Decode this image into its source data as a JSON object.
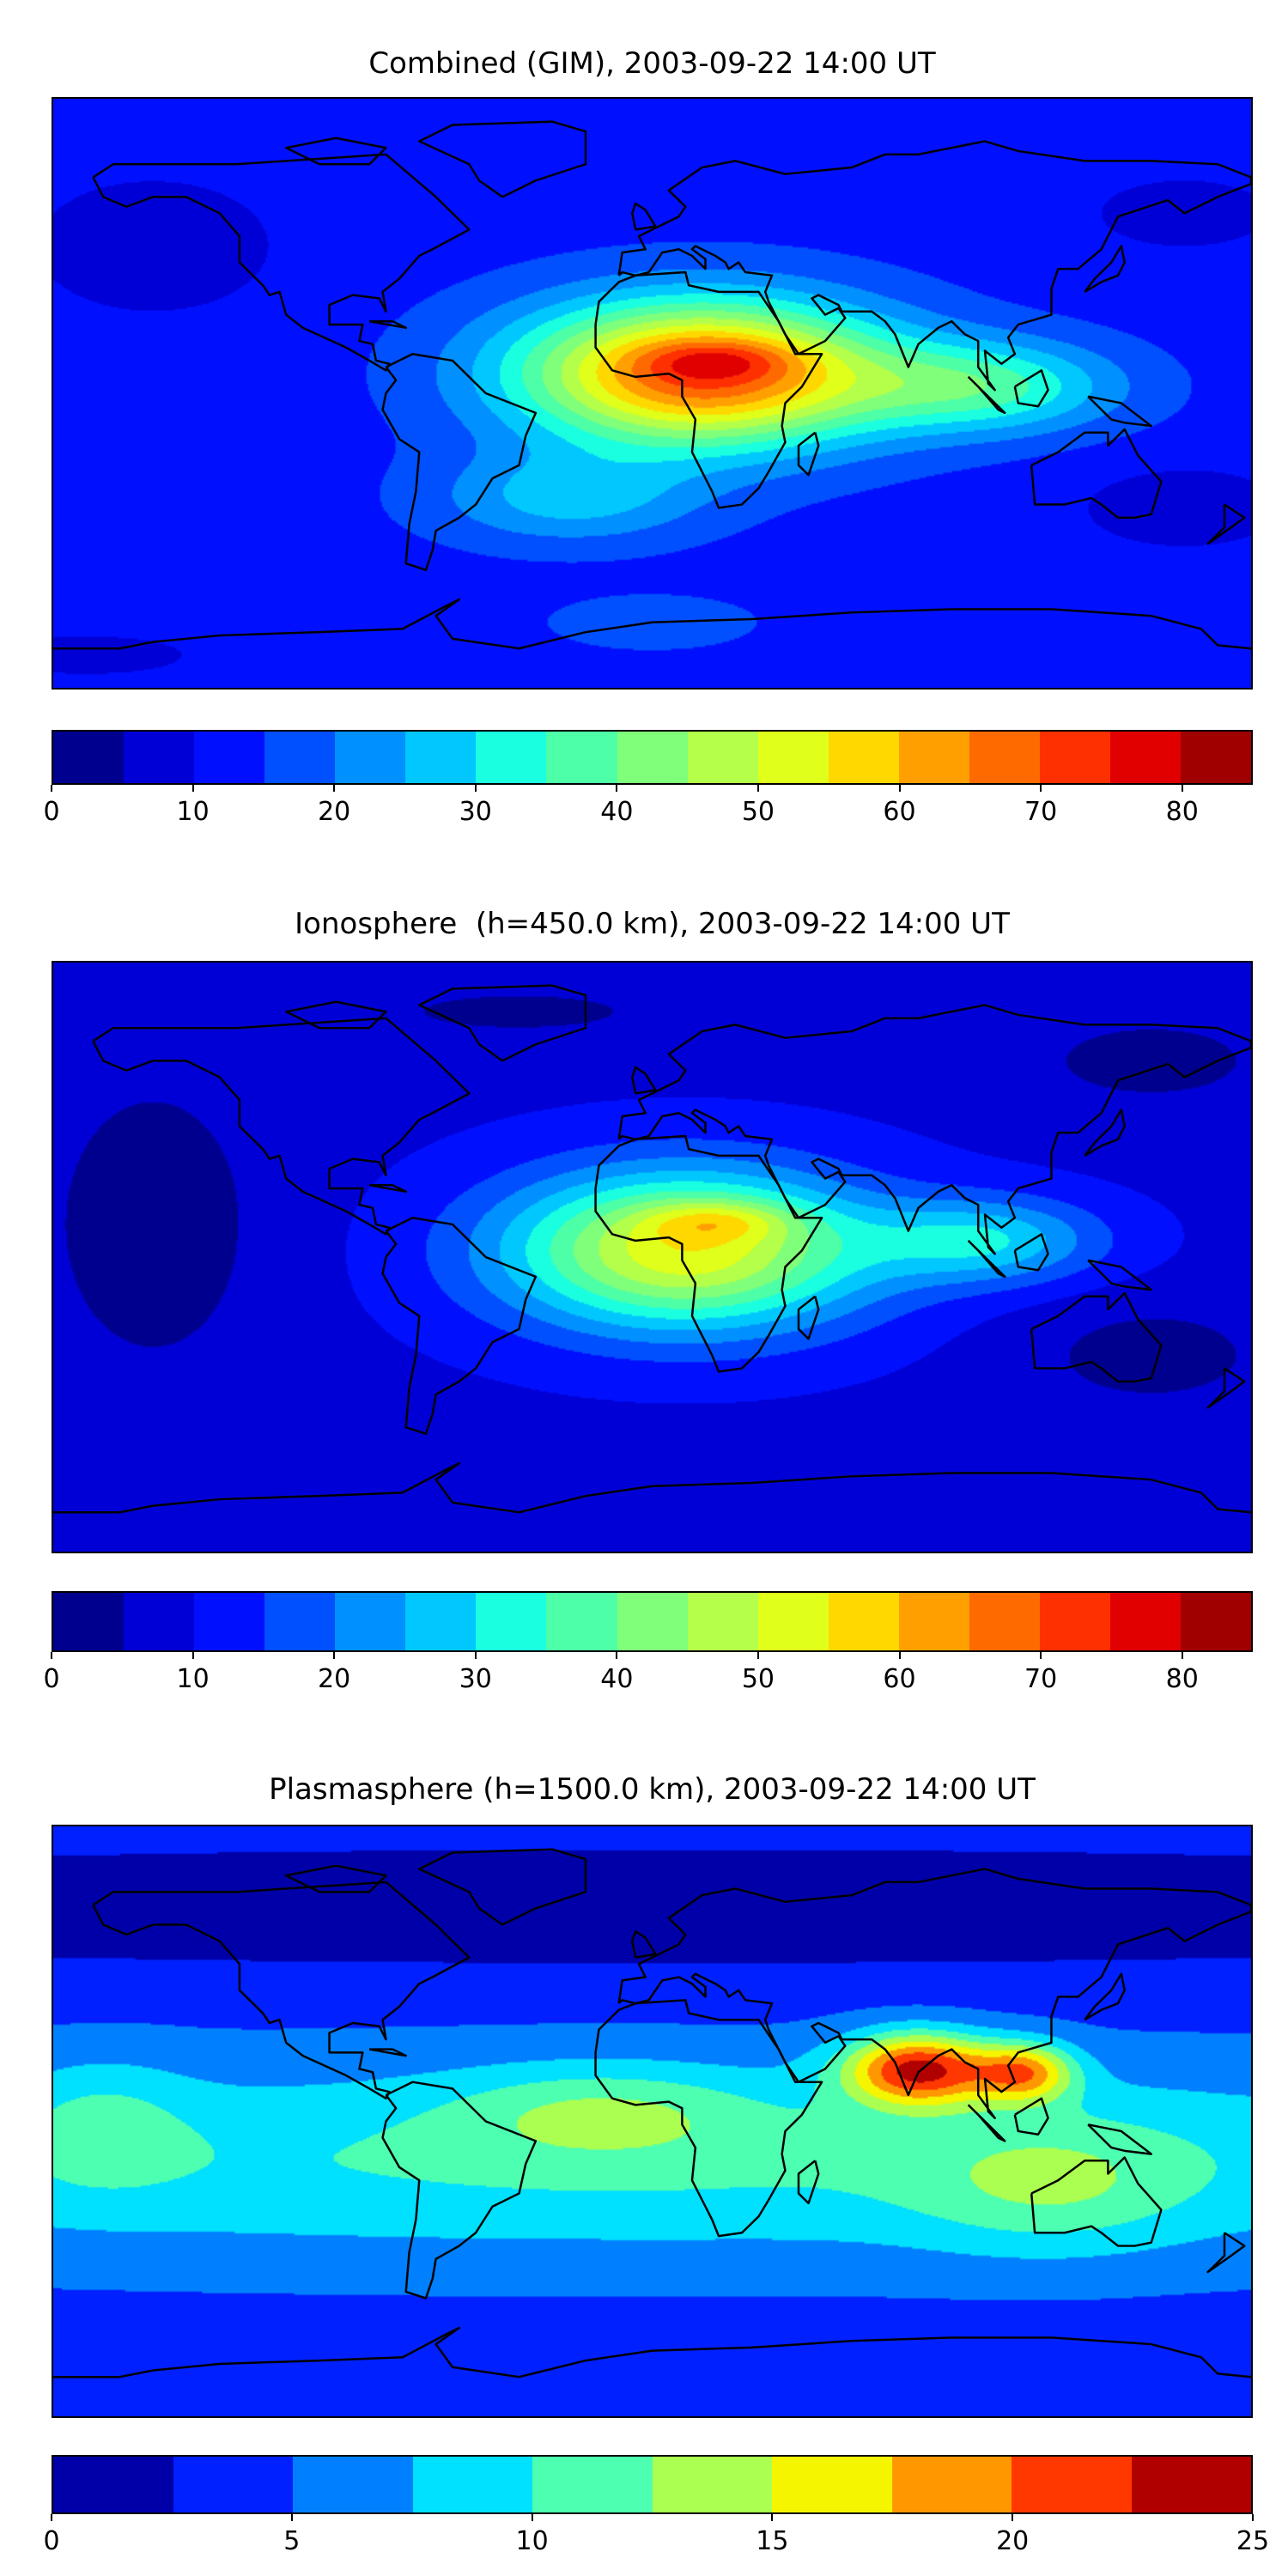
{
  "chart_data": [
    {
      "type": "heatmap",
      "title": "Combined (GIM), 2003-09-22 14:00 UT",
      "xlabel": "",
      "ylabel": "",
      "x_range_lon": [
        -180,
        180
      ],
      "y_range_lat": [
        -90,
        90
      ],
      "colorbar": {
        "range": [
          0,
          85
        ],
        "levels": [
          0,
          5,
          10,
          15,
          20,
          25,
          30,
          35,
          40,
          45,
          50,
          55,
          60,
          65,
          70,
          75,
          80,
          85
        ],
        "ticks": [
          "0",
          "10",
          "20",
          "30",
          "40",
          "50",
          "60",
          "70",
          "80"
        ],
        "tick_values": [
          0,
          10,
          20,
          30,
          40,
          50,
          60,
          70,
          80
        ],
        "colors": [
          "#00008f",
          "#0000d6",
          "#0010ff",
          "#0050ff",
          "#0090ff",
          "#00c8ff",
          "#19ffe0",
          "#4dffa6",
          "#80ff7a",
          "#b3ff4a",
          "#e0ff1a",
          "#ffd800",
          "#ffa000",
          "#ff6a00",
          "#ff3000",
          "#e00000",
          "#a00000"
        ]
      },
      "features": {
        "max_region": "equatorial Africa (~70-75)",
        "min_region": "high latitudes / Pacific (~0-10)"
      }
    },
    {
      "type": "heatmap",
      "title": "Ionosphere  (h=450.0 km), 2003-09-22 14:00 UT",
      "xlabel": "",
      "ylabel": "",
      "x_range_lon": [
        -180,
        180
      ],
      "y_range_lat": [
        -90,
        90
      ],
      "colorbar": {
        "range": [
          0,
          85
        ],
        "levels": [
          0,
          5,
          10,
          15,
          20,
          25,
          30,
          35,
          40,
          45,
          50,
          55,
          60,
          65,
          70,
          75,
          80,
          85
        ],
        "ticks": [
          "0",
          "10",
          "20",
          "30",
          "40",
          "50",
          "60",
          "70",
          "80"
        ],
        "tick_values": [
          0,
          10,
          20,
          30,
          40,
          50,
          60,
          70,
          80
        ],
        "colors": [
          "#00008f",
          "#0000d6",
          "#0010ff",
          "#0050ff",
          "#0090ff",
          "#00c8ff",
          "#19ffe0",
          "#4dffa6",
          "#80ff7a",
          "#b3ff4a",
          "#e0ff1a",
          "#ffd800",
          "#ffa000",
          "#ff6a00",
          "#ff3000",
          "#e00000",
          "#a00000"
        ]
      },
      "features": {
        "max_region": "north-central Africa (~60-65)",
        "min_region": "Pacific / high latitudes (~0-10)"
      }
    },
    {
      "type": "heatmap",
      "title": "Plasmasphere (h=1500.0 km), 2003-09-22 14:00 UT",
      "xlabel": "",
      "ylabel": "",
      "x_range_lon": [
        -180,
        180
      ],
      "y_range_lat": [
        -90,
        90
      ],
      "colorbar": {
        "range": [
          0,
          25
        ],
        "levels": [
          0,
          2.5,
          5,
          7.5,
          10,
          12.5,
          15,
          17.5,
          20,
          22.5,
          25
        ],
        "ticks": [
          "0",
          "5",
          "10",
          "15",
          "20",
          "25"
        ],
        "tick_values": [
          0,
          5,
          10,
          15,
          20,
          25
        ],
        "colors": [
          "#0000a8",
          "#0020ff",
          "#0080ff",
          "#00e0ff",
          "#4dffb0",
          "#aaff50",
          "#f5f500",
          "#ff9800",
          "#ff3800",
          "#b00000"
        ]
      },
      "features": {
        "max_region": "India / Southeast Asia (~22.5-25)",
        "min_region": "northern high latitudes (~0-2.5)"
      }
    }
  ]
}
